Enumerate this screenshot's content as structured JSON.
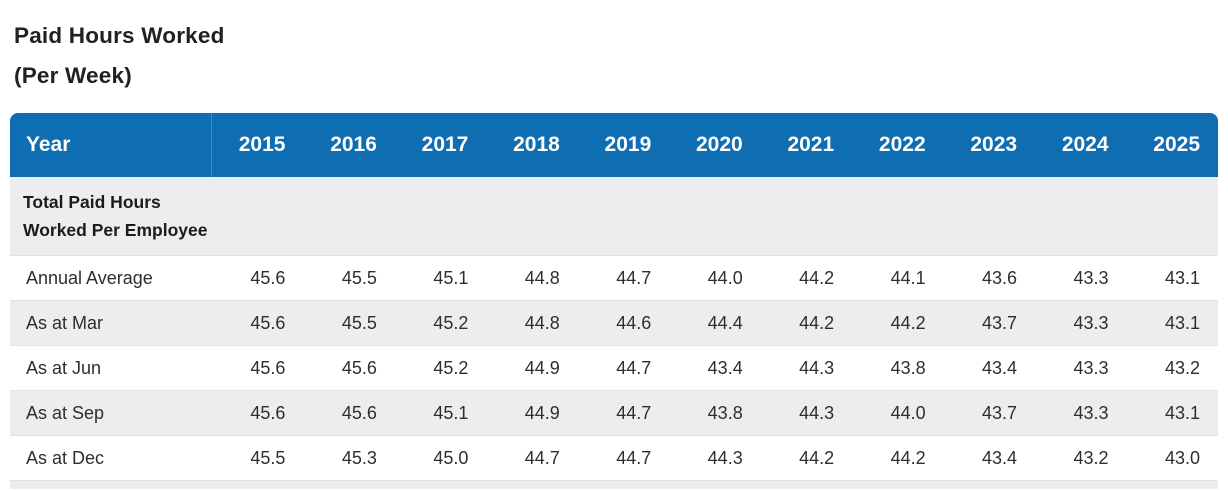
{
  "page": {
    "title_line1": "Paid Hours Worked",
    "title_line2": "(Per Week)"
  },
  "colors": {
    "header_bg": "#0f6db2",
    "header_text": "#ffffff",
    "stripe_bg": "#ededed",
    "body_text": "#2e2e2e",
    "title_text": "#212121"
  },
  "table": {
    "header": {
      "label": "Year",
      "years": [
        "2015",
        "2016",
        "2017",
        "2018",
        "2019",
        "2020",
        "2021",
        "2022",
        "2023",
        "2024",
        "2025"
      ]
    },
    "section": {
      "label_line1": "Total Paid Hours",
      "label_line2": "Worked Per Employee"
    },
    "rows": [
      {
        "label": "Annual Average",
        "values": [
          "45.6",
          "45.5",
          "45.1",
          "44.8",
          "44.7",
          "44.0",
          "44.2",
          "44.1",
          "43.6",
          "43.3",
          "43.1"
        ]
      },
      {
        "label": "As at Mar",
        "values": [
          "45.6",
          "45.5",
          "45.2",
          "44.8",
          "44.6",
          "44.4",
          "44.2",
          "44.2",
          "43.7",
          "43.3",
          "43.1"
        ]
      },
      {
        "label": "As at Jun",
        "values": [
          "45.6",
          "45.6",
          "45.2",
          "44.9",
          "44.7",
          "43.4",
          "44.3",
          "43.8",
          "43.4",
          "43.3",
          "43.2"
        ]
      },
      {
        "label": "As at Sep",
        "values": [
          "45.6",
          "45.6",
          "45.1",
          "44.9",
          "44.7",
          "43.8",
          "44.3",
          "44.0",
          "43.7",
          "43.3",
          "43.1"
        ]
      },
      {
        "label": "As at Dec",
        "values": [
          "45.5",
          "45.3",
          "45.0",
          "44.7",
          "44.7",
          "44.3",
          "44.2",
          "44.2",
          "43.4",
          "43.2",
          "43.0"
        ]
      }
    ]
  }
}
